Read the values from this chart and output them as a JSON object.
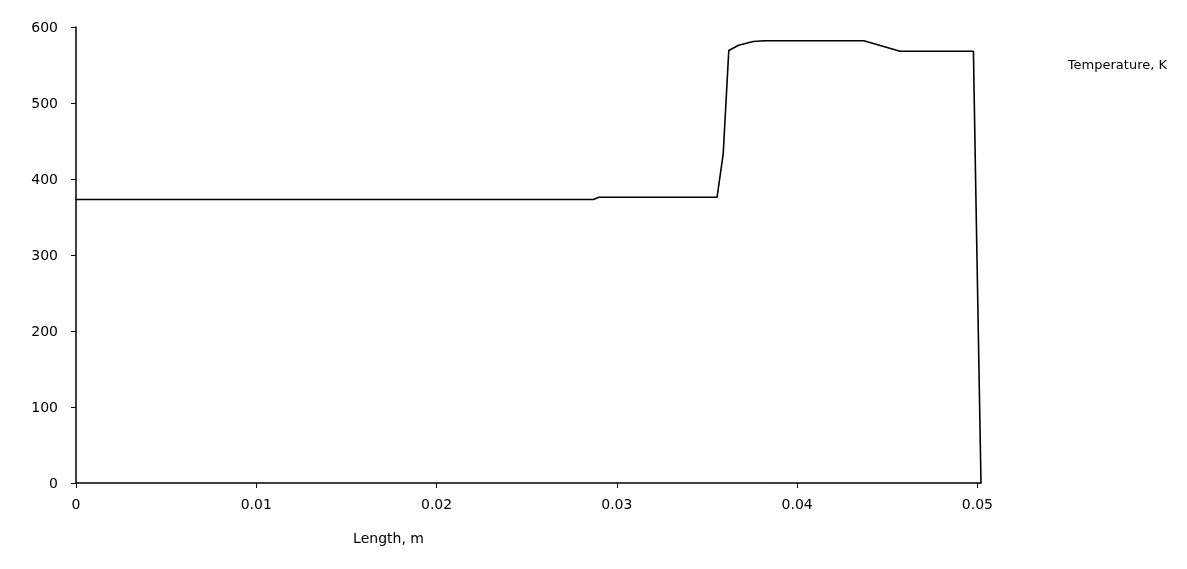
{
  "chart_data": {
    "type": "line",
    "xlabel": "Length, m",
    "annotations": [
      "Temperature, K"
    ],
    "x": [
      0,
      0.0287,
      0.029,
      0.03556,
      0.0359,
      0.03621,
      0.03675,
      0.03757,
      0.03827,
      0.0437,
      0.04571,
      0.04978,
      0.0499,
      0.0502
    ],
    "series": [
      {
        "color": "#000000",
        "values": [
          373,
          373,
          376,
          376,
          433,
          569,
          576,
          581,
          582,
          582,
          568,
          568,
          400,
          0
        ]
      }
    ],
    "xlim": [
      0,
      0.0502
    ],
    "xticks": [
      0,
      0.01,
      0.02,
      0.03,
      0.04,
      0.05
    ],
    "ylim": [
      0,
      600
    ],
    "yticks": [
      0,
      100,
      200,
      300,
      400,
      500,
      600
    ],
    "grid": false,
    "marker": "none",
    "line_style": "solid"
  }
}
